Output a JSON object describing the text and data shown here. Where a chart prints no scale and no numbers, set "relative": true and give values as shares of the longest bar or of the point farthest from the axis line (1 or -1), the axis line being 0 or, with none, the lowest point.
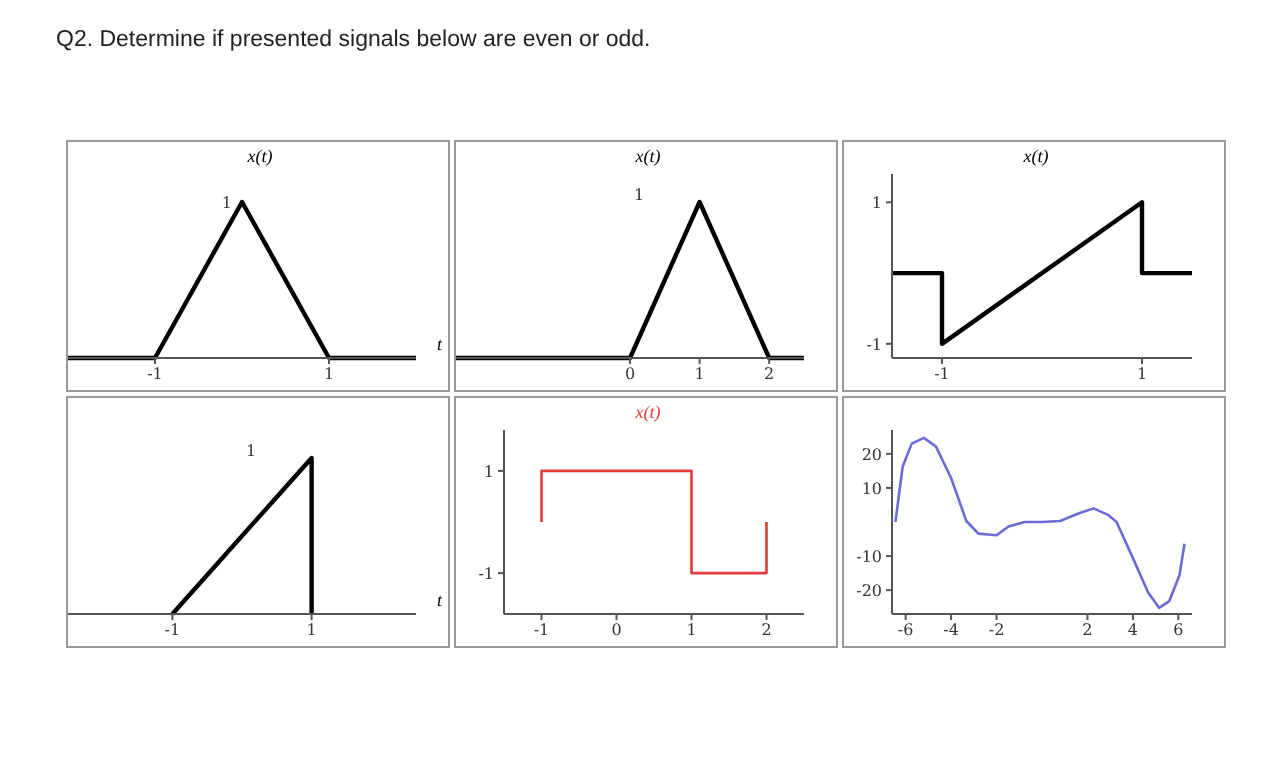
{
  "chart_data": [
    {
      "type": "line",
      "title": "Q2. Determine if presented signals below are even or odd.",
      "ylabel": "x(t)",
      "xlabel": "t",
      "x": [
        -2,
        -1,
        0,
        1,
        2
      ],
      "series": [
        {
          "color": "#000000",
          "values": [
            0,
            0,
            1,
            0,
            0
          ]
        }
      ],
      "relative": true,
      "annotations": [
        {
          "text": "1",
          "x": 0,
          "y": 1
        }
      ],
      "xlim": [
        -2,
        2
      ],
      "xticks": [
        -1,
        1
      ],
      "grid": false,
      "legend": false,
      "marker": "none"
    },
    {
      "type": "line",
      "ylabel": "x(t)",
      "x": [
        -2.5,
        0,
        1,
        2,
        2.5
      ],
      "series": [
        {
          "color": "#000000",
          "values": [
            0,
            0,
            1,
            0,
            0
          ]
        }
      ],
      "relative": true,
      "annotations": [
        "1"
      ],
      "xlim": [
        -2.5,
        2.5
      ],
      "xticks": [
        0,
        1,
        2
      ],
      "grid": false,
      "legend": false,
      "marker": "none"
    },
    {
      "type": "line",
      "ylabel": "x(t)",
      "x": [
        -1.5,
        -1,
        -1,
        1,
        1,
        1.5
      ],
      "series": [
        {
          "color": "#000000",
          "values": [
            0,
            0,
            -1,
            1,
            0,
            0
          ]
        }
      ],
      "xlim": [
        -1.5,
        1.5
      ],
      "ylim": [
        -1.2,
        1.4
      ],
      "xticks": [
        -1,
        1
      ],
      "yticks": [
        -1,
        1
      ],
      "grid": false,
      "legend": false,
      "marker": "none"
    },
    {
      "type": "line",
      "xlabel": "t",
      "x": [
        -1,
        1,
        1
      ],
      "series": [
        {
          "color": "#000000",
          "values": [
            0,
            1,
            0
          ]
        }
      ],
      "relative": true,
      "annotations": [
        "1"
      ],
      "xlim": [
        -2.5,
        2.5
      ],
      "xticks": [
        -1,
        1
      ],
      "grid": false,
      "legend": false,
      "marker": "none"
    },
    {
      "type": "line",
      "ylabel": "x(t)",
      "x": [
        -1,
        -1,
        1,
        1,
        2,
        2
      ],
      "series": [
        {
          "color": "#e03c3c",
          "values": [
            0,
            1,
            1,
            -1,
            -1,
            0
          ]
        }
      ],
      "xlim": [
        -1.5,
        2.5
      ],
      "ylim": [
        -1.8,
        1.8
      ],
      "xticks": [
        -1,
        0,
        1,
        2
      ],
      "yticks": [
        -1,
        1
      ],
      "grid": false,
      "legend": false,
      "marker": "none"
    },
    {
      "type": "line",
      "x": [
        -6.45,
        -6.13,
        -5.73,
        -5.2,
        -4.67,
        -4,
        -3.33,
        -2.8,
        -2,
        -1.47,
        -0.75,
        0,
        0.8,
        1.6,
        2.27,
        2.93,
        3.28,
        4,
        4.67,
        5.15,
        5.6,
        6.05,
        6.27
      ],
      "series": [
        {
          "color": "#6b6bd6",
          "values": [
            0,
            16.3,
            23,
            24.7,
            22.2,
            12.9,
            0.3,
            -3.4,
            -3.9,
            -1.3,
            0,
            0,
            0.3,
            2.5,
            4,
            2,
            0,
            -10.6,
            -20.7,
            -25.2,
            -23.2,
            -15.6,
            -6.4
          ]
        }
      ],
      "xlim": [
        -6.6,
        6.6
      ],
      "ylim": [
        -27,
        27
      ],
      "xticks": [
        -6,
        -4,
        -2,
        2,
        4,
        6
      ],
      "yticks": [
        -20,
        -10,
        10,
        20
      ],
      "grid": false,
      "legend": false,
      "marker": "none"
    }
  ]
}
